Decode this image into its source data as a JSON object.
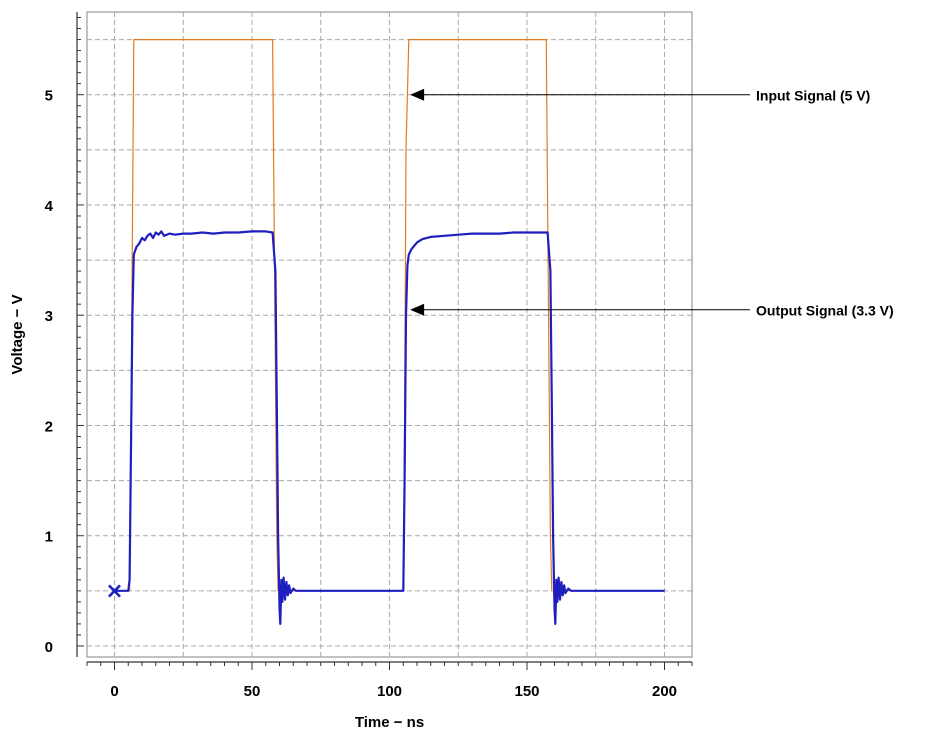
{
  "chart_data": {
    "type": "line",
    "xlabel": "Time − ns",
    "ylabel": "Voltage − V",
    "xlim": [
      -10,
      210
    ],
    "ylim": [
      -0.1,
      5.75
    ],
    "x_ticks": [
      0,
      50,
      100,
      150,
      200
    ],
    "y_ticks": [
      0,
      1,
      2,
      3,
      4,
      5
    ],
    "x_tick_labels": [
      "0",
      "50",
      "100",
      "150",
      "200"
    ],
    "y_tick_labels": [
      "0",
      "1",
      "2",
      "3",
      "4",
      "5"
    ],
    "grid": true,
    "legend": "none",
    "colors": {
      "input": "#E07B20",
      "output": "#1F1FBF",
      "grid": "#A8A8A8"
    },
    "series": [
      {
        "key": "input",
        "x": [
          0,
          5.5,
          6,
          7,
          7.5,
          57.5,
          58,
          59,
          59.5,
          105,
          105.5,
          106,
          107,
          157,
          157.5,
          158.5,
          159
        ],
        "y": [
          0.5,
          0.5,
          2.0,
          5.5,
          5.5,
          5.5,
          4.0,
          1.0,
          0.5,
          0.5,
          2.0,
          4.5,
          5.5,
          5.5,
          4.0,
          1.0,
          0.5
        ]
      },
      {
        "key": "output",
        "x": [
          0,
          5,
          5.5,
          6,
          6.5,
          7,
          8,
          9,
          10,
          11,
          12,
          13,
          14,
          15,
          16,
          17,
          18,
          20,
          22,
          25,
          28,
          32,
          36,
          40,
          45,
          50,
          55,
          57.5,
          58.5,
          59,
          59.5,
          60,
          60.3,
          60.7,
          61,
          61.5,
          62,
          62.5,
          63,
          63.5,
          64,
          65,
          66,
          68,
          70,
          80,
          90,
          100,
          105,
          105.5,
          106,
          106.5,
          107,
          108,
          110,
          112,
          115,
          120,
          125,
          130,
          135,
          140,
          145,
          150,
          155,
          157.5,
          158.5,
          159,
          159.5,
          160,
          160.3,
          160.7,
          161,
          161.5,
          162,
          162.5,
          163,
          163.5,
          164,
          165,
          166,
          168,
          170,
          180,
          190,
          200
        ],
        "y": [
          0.5,
          0.5,
          0.6,
          1.8,
          3.0,
          3.55,
          3.62,
          3.65,
          3.7,
          3.68,
          3.72,
          3.74,
          3.7,
          3.75,
          3.73,
          3.76,
          3.72,
          3.74,
          3.73,
          3.74,
          3.74,
          3.75,
          3.74,
          3.75,
          3.75,
          3.76,
          3.76,
          3.75,
          3.4,
          2.2,
          1.0,
          0.35,
          0.2,
          0.6,
          0.4,
          0.62,
          0.42,
          0.58,
          0.46,
          0.55,
          0.48,
          0.52,
          0.5,
          0.5,
          0.5,
          0.5,
          0.5,
          0.5,
          0.5,
          1.5,
          3.0,
          3.45,
          3.55,
          3.6,
          3.66,
          3.69,
          3.71,
          3.72,
          3.73,
          3.74,
          3.74,
          3.74,
          3.75,
          3.75,
          3.75,
          3.75,
          3.4,
          2.2,
          1.0,
          0.35,
          0.2,
          0.6,
          0.4,
          0.62,
          0.42,
          0.58,
          0.46,
          0.55,
          0.48,
          0.52,
          0.5,
          0.5,
          0.5,
          0.5,
          0.5,
          0.5
        ]
      }
    ],
    "annotations": [
      {
        "text": "Input Signal (5 V)",
        "x": 107.5,
        "y": 5.0
      },
      {
        "text": "Output Signal (3.3 V)",
        "x": 107.5,
        "y": 3.05
      }
    ],
    "start_marker": {
      "x": 0,
      "y": 0.5,
      "symbol": "×"
    }
  }
}
